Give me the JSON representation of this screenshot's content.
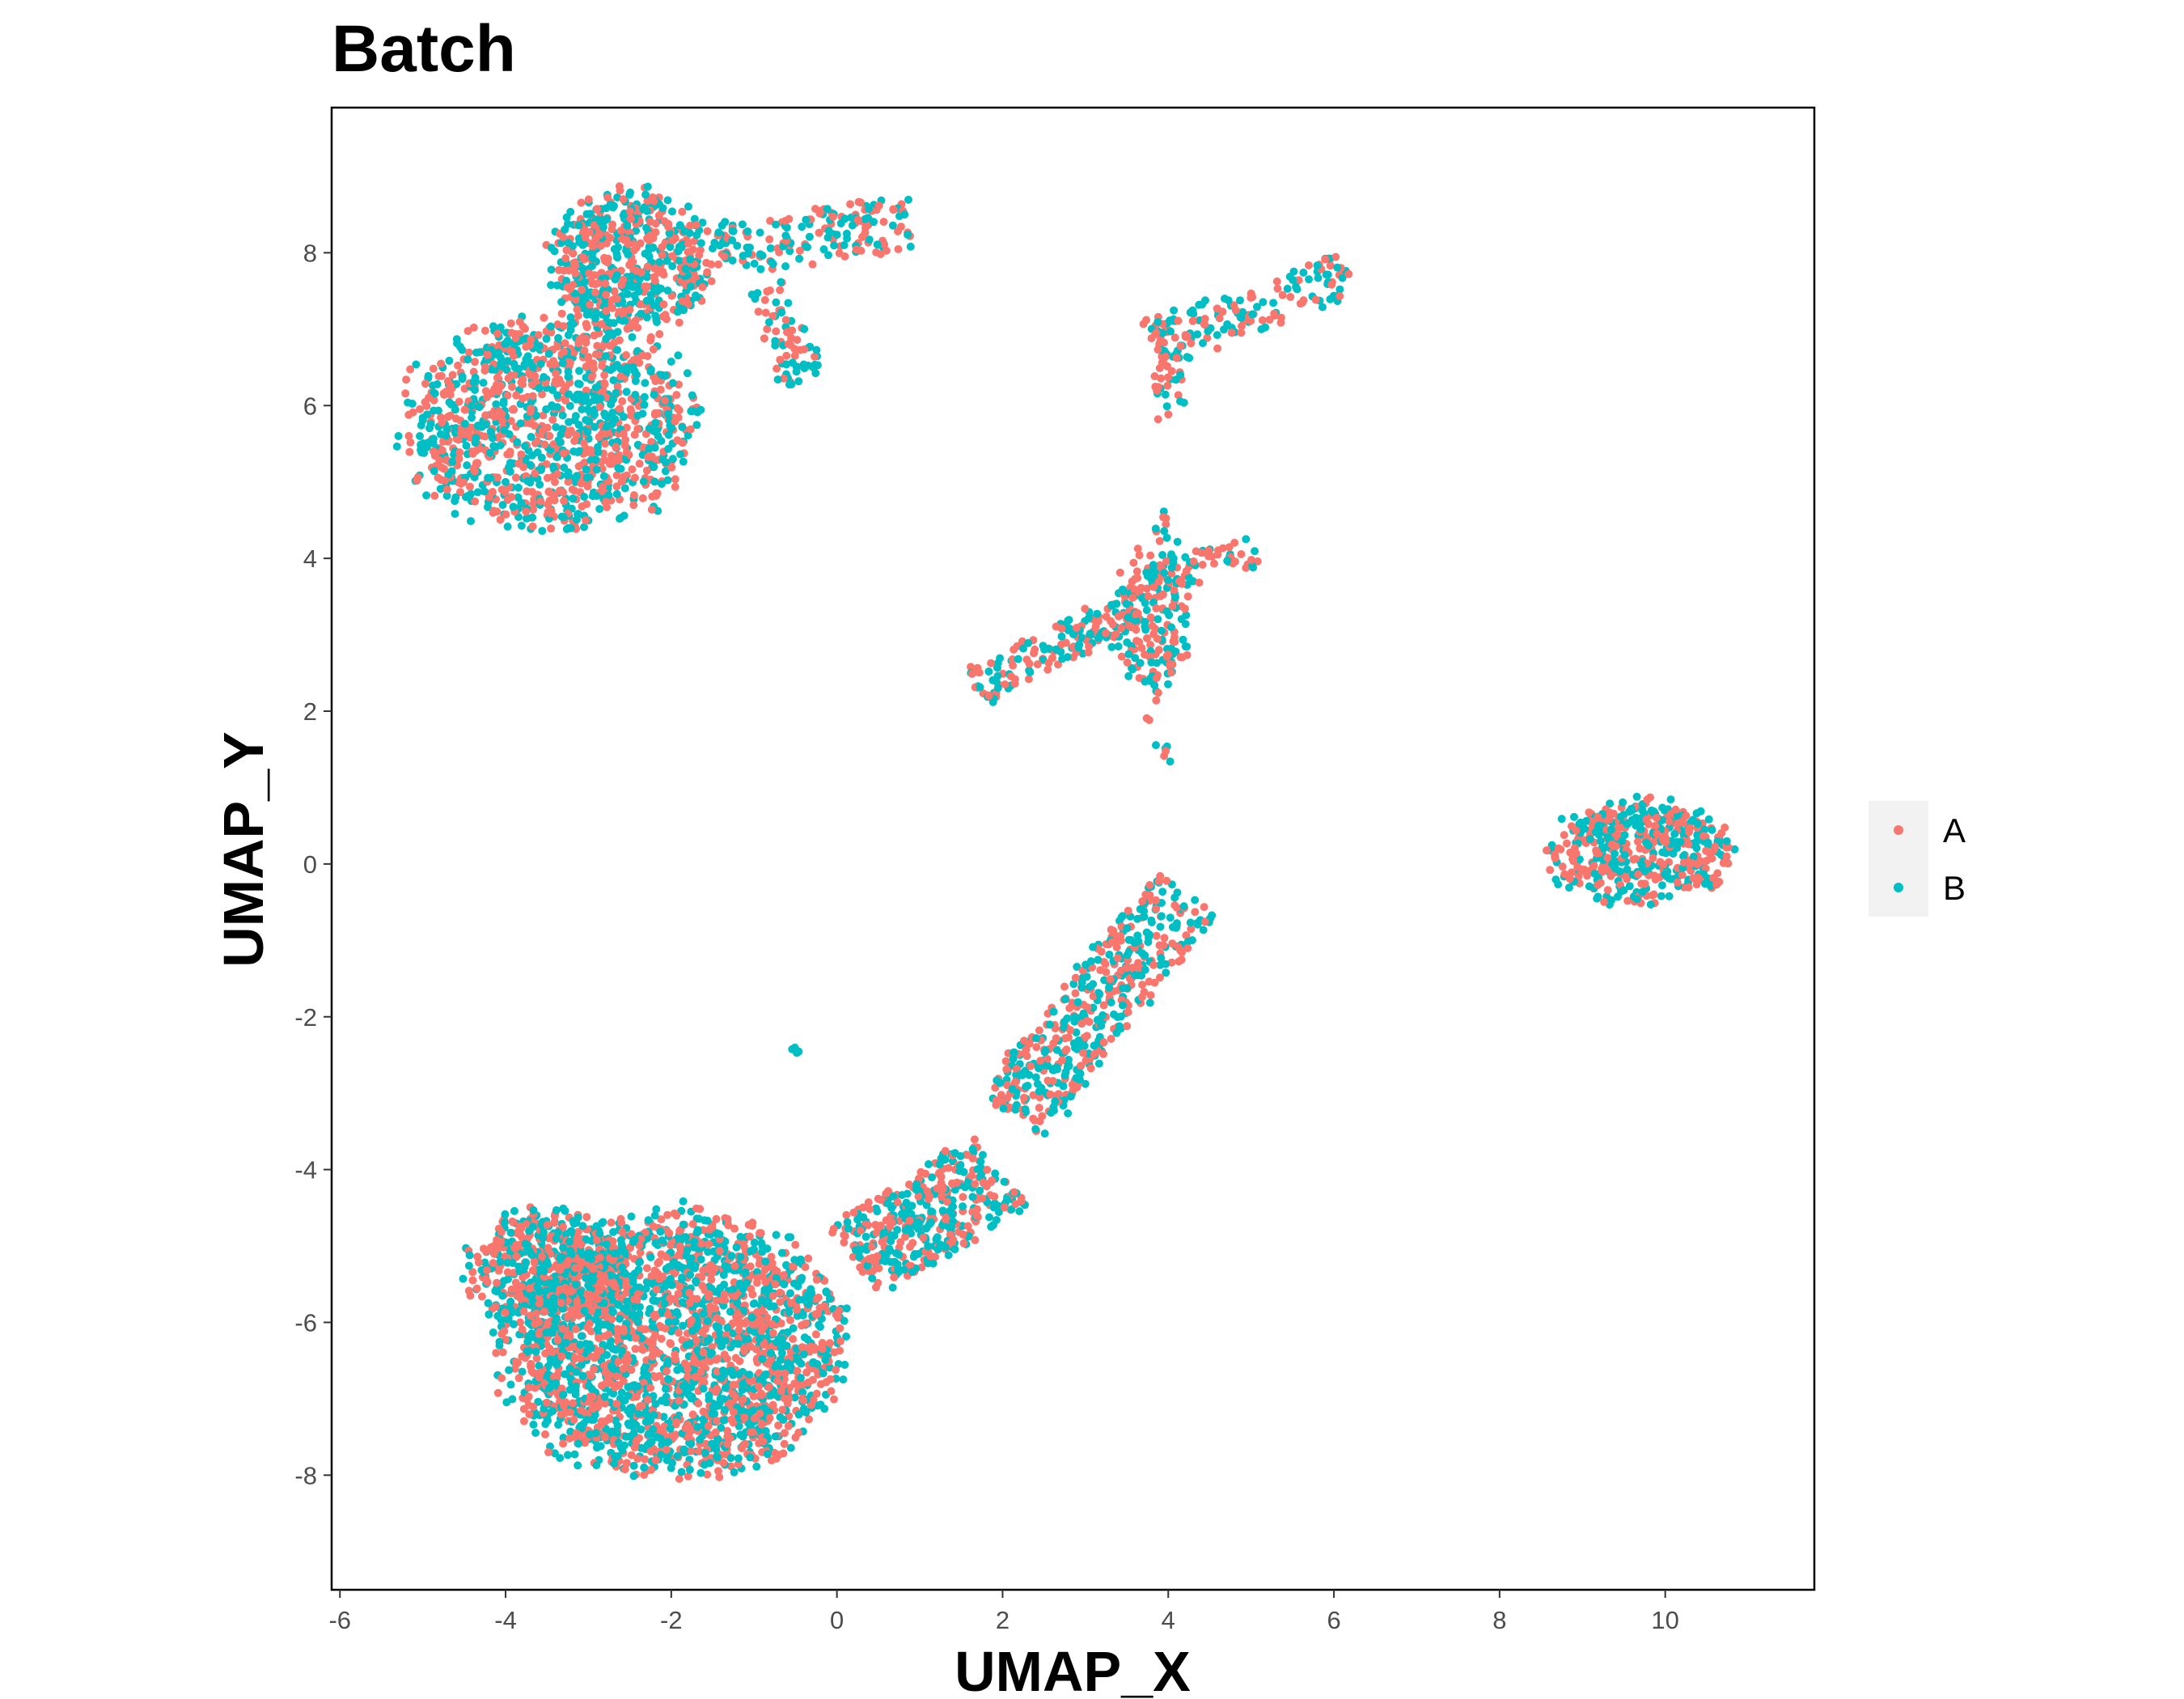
{
  "chart_data": {
    "type": "scatter",
    "title": "Batch",
    "xlabel": "UMAP_X",
    "ylabel": "UMAP_Y",
    "xlim": [
      -6.1,
      11.8
    ],
    "ylim": [
      -9.5,
      9.9
    ],
    "x_ticks": [
      -6,
      -4,
      -2,
      0,
      2,
      4,
      6,
      8,
      10
    ],
    "y_ticks": [
      -8,
      -6,
      -4,
      -2,
      0,
      2,
      4,
      6,
      8
    ],
    "grid": false,
    "legend_position": "right",
    "series": [
      {
        "name": "A",
        "color": "#F8766D"
      },
      {
        "name": "B",
        "color": "#00BFC4"
      }
    ],
    "clusters": [
      {
        "cluster": "top-left",
        "points_approx": 2000,
        "shapes": [
          {
            "kind": "ellipse",
            "cx": -3.45,
            "cy": 5.75,
            "rx": 1.95,
            "ry": 1.55,
            "weight": 1200
          },
          {
            "kind": "ellipse",
            "cx": -2.5,
            "cy": 7.85,
            "rx": 1.05,
            "ry": 1.05,
            "weight": 560
          },
          {
            "kind": "band",
            "from": [
              -1.5,
              8.0
            ],
            "to": [
              0.9,
              8.4
            ],
            "width": 0.35,
            "weight": 170
          },
          {
            "kind": "band",
            "from": [
              -0.8,
              7.6
            ],
            "to": [
              -0.4,
              6.3
            ],
            "width": 0.25,
            "weight": 70
          }
        ]
      },
      {
        "cluster": "top-center-streak",
        "points_approx": 200,
        "shapes": [
          {
            "kind": "band",
            "from": [
              3.8,
              6.8
            ],
            "to": [
              6.15,
              7.7
            ],
            "width": 0.3,
            "weight": 160
          },
          {
            "kind": "band",
            "from": [
              4.05,
              6.8
            ],
            "to": [
              3.95,
              5.9
            ],
            "width": 0.2,
            "weight": 40
          }
        ]
      },
      {
        "cluster": "center",
        "points_approx": 420,
        "shapes": [
          {
            "kind": "band",
            "from": [
              1.7,
              2.3
            ],
            "to": [
              3.6,
              3.4
            ],
            "width": 0.25,
            "weight": 160
          },
          {
            "kind": "ellipse",
            "cx": 3.8,
            "cy": 3.2,
            "rx": 0.55,
            "ry": 1.0,
            "weight": 160
          },
          {
            "kind": "band",
            "from": [
              3.8,
              3.8
            ],
            "to": [
              5.0,
              4.1
            ],
            "width": 0.2,
            "weight": 60
          },
          {
            "kind": "band",
            "from": [
              4.0,
              4.9
            ],
            "to": [
              3.9,
              1.3
            ],
            "width": 0.12,
            "weight": 40
          }
        ]
      },
      {
        "cluster": "right",
        "points_approx": 500,
        "shapes": [
          {
            "kind": "ellipse",
            "cx": 9.7,
            "cy": 0.15,
            "rx": 1.25,
            "ry": 0.75,
            "weight": 500
          }
        ]
      },
      {
        "cluster": "bottom-large",
        "points_approx": 3600,
        "shapes": [
          {
            "kind": "ellipse",
            "cx": -2.0,
            "cy": -6.3,
            "rx": 2.3,
            "ry": 1.9,
            "weight": 2400
          },
          {
            "kind": "ellipse",
            "cx": -3.5,
            "cy": -5.3,
            "rx": 1.05,
            "ry": 0.85,
            "weight": 500
          },
          {
            "kind": "band",
            "from": [
              0.2,
              -5.2
            ],
            "to": [
              2.0,
              -4.0
            ],
            "width": 0.55,
            "weight": 420
          },
          {
            "kind": "band",
            "from": [
              2.1,
              -3.3
            ],
            "to": [
              4.2,
              -0.4
            ],
            "width": 0.45,
            "weight": 480
          },
          {
            "kind": "ellipse",
            "cx": -0.5,
            "cy": -2.45,
            "rx": 0.06,
            "ry": 0.06,
            "weight": 4
          }
        ]
      }
    ]
  }
}
